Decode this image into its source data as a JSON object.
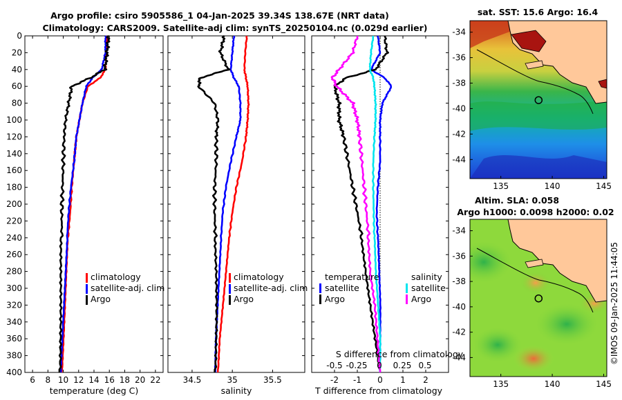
{
  "header": {
    "title_line1": "Argo profile: csiro 5905586_1 04-Jan-2025 39.34S 138.67E (NRT data)",
    "title_line2": "Climatology: CARS2009. Satellite-adj clim: synTS_20250104.nc (0.029d earlier)"
  },
  "colors": {
    "climatology": "#ff0000",
    "satellite": "#0000ff",
    "argo": "#000000",
    "sal_satellite": "#00e5ee",
    "sal_argo": "#ff00ff"
  },
  "chart_data": [
    {
      "id": "temperature",
      "type": "line",
      "xlabel": "temperature (deg C)",
      "ylabel": "",
      "xlim": [
        5,
        23
      ],
      "ylim": [
        0,
        400
      ],
      "y_reversed": true,
      "xticks": [
        6,
        8,
        10,
        12,
        14,
        16,
        18,
        20,
        22
      ],
      "yticks": [
        0,
        20,
        40,
        60,
        80,
        100,
        120,
        140,
        160,
        180,
        200,
        220,
        240,
        260,
        280,
        300,
        320,
        340,
        360,
        380,
        400
      ],
      "legend": [
        "climatology",
        "satellite-adj. clim",
        "Argo"
      ],
      "legend_position": "lower-right",
      "series": [
        {
          "name": "climatology",
          "color": "#ff0000",
          "x": [
            15.7,
            15.6,
            15.5,
            14.8,
            13.2,
            12.5,
            12.1,
            11.7,
            11.4,
            11.1,
            10.9,
            10.6,
            10.4,
            10.2,
            10.0,
            9.8
          ],
          "y": [
            0,
            20,
            40,
            50,
            60,
            80,
            100,
            120,
            150,
            180,
            210,
            240,
            280,
            320,
            360,
            400
          ]
        },
        {
          "name": "satellite-adj. clim",
          "color": "#0000ff",
          "x": [
            15.5,
            15.5,
            15.0,
            13.8,
            13.0,
            12.5,
            12.1,
            11.7,
            11.4,
            11.0,
            10.7,
            10.5,
            10.3,
            10.1,
            9.9,
            9.7
          ],
          "y": [
            0,
            20,
            40,
            50,
            60,
            80,
            100,
            120,
            150,
            180,
            210,
            240,
            280,
            320,
            360,
            400
          ]
        },
        {
          "name": "Argo",
          "color": "#000000",
          "x": [
            15.9,
            15.7,
            15.4,
            13.5,
            11.1,
            10.7,
            10.3,
            10.1,
            10.0,
            9.9,
            9.8,
            9.8,
            9.75,
            9.7,
            9.6,
            9.5
          ],
          "y": [
            0,
            20,
            40,
            50,
            60,
            80,
            100,
            120,
            150,
            180,
            210,
            240,
            280,
            320,
            360,
            400
          ]
        }
      ]
    },
    {
      "id": "salinity",
      "type": "line",
      "xlabel": "salinity",
      "ylabel": "",
      "xlim": [
        34.2,
        35.9
      ],
      "ylim": [
        0,
        400
      ],
      "y_reversed": true,
      "xticks": [
        34.5,
        35,
        35.5
      ],
      "legend": [
        "climatology",
        "satellite-adj. clim",
        "Argo"
      ],
      "legend_position": "lower-right",
      "series": [
        {
          "name": "climatology",
          "color": "#ff0000",
          "x": [
            35.18,
            35.16,
            35.15,
            35.17,
            35.19,
            35.2,
            35.19,
            35.17,
            35.12,
            35.05,
            35.0,
            34.96,
            34.92,
            34.88,
            34.84,
            34.82
          ],
          "y": [
            0,
            20,
            40,
            50,
            60,
            80,
            100,
            120,
            150,
            180,
            210,
            240,
            280,
            320,
            360,
            400
          ]
        },
        {
          "name": "satellite-adj. clim",
          "color": "#0000ff",
          "x": [
            35.02,
            35.0,
            34.98,
            35.02,
            35.08,
            35.1,
            35.1,
            35.05,
            34.98,
            34.92,
            34.88,
            34.86,
            34.84,
            34.82,
            34.8,
            34.79
          ],
          "y": [
            0,
            20,
            40,
            50,
            60,
            80,
            100,
            120,
            150,
            180,
            210,
            240,
            280,
            320,
            360,
            400
          ]
        },
        {
          "name": "Argo",
          "color": "#000000",
          "x": [
            34.9,
            34.85,
            34.95,
            34.6,
            34.58,
            34.78,
            34.82,
            34.8,
            34.8,
            34.78,
            34.78,
            34.79,
            34.8,
            34.8,
            34.79,
            34.78
          ],
          "y": [
            0,
            20,
            40,
            50,
            60,
            80,
            100,
            120,
            150,
            180,
            210,
            240,
            280,
            320,
            360,
            400
          ]
        }
      ]
    },
    {
      "id": "difference",
      "type": "line",
      "xlabel": "T difference from climatology",
      "x2label": "S difference from climatology",
      "xlim": [
        -3,
        3
      ],
      "ylim": [
        0,
        400
      ],
      "y_reversed": true,
      "xticks": [
        -2,
        -1,
        0,
        1,
        2
      ],
      "x2ticks": [
        "-0.5",
        "-0.25",
        "0",
        "0.25",
        "0.5"
      ],
      "legend_groups": [
        {
          "title": "temperature",
          "items": [
            "satellite",
            "Argo"
          ]
        },
        {
          "title": "salinity",
          "items": [
            "satellite",
            "Argo"
          ]
        }
      ],
      "series": [
        {
          "name": "T satellite",
          "color": "#0000ff",
          "x": [
            -0.1,
            0.0,
            -0.4,
            0.2,
            0.5,
            0.1,
            0.0,
            0.0,
            0.0,
            -0.1,
            -0.15,
            -0.1,
            -0.05,
            0.0,
            0.0,
            0.0
          ],
          "y": [
            0,
            20,
            40,
            50,
            60,
            80,
            100,
            120,
            150,
            180,
            210,
            240,
            280,
            320,
            360,
            400
          ]
        },
        {
          "name": "T Argo",
          "color": "#000000",
          "x": [
            0.2,
            0.3,
            -0.2,
            -1.5,
            -2.0,
            -1.8,
            -1.8,
            -1.6,
            -1.4,
            -1.2,
            -1.0,
            -0.8,
            -0.6,
            -0.4,
            -0.2,
            0.0
          ],
          "y": [
            0,
            20,
            40,
            50,
            60,
            80,
            100,
            120,
            150,
            180,
            210,
            240,
            280,
            320,
            360,
            400
          ]
        },
        {
          "name": "S satellite",
          "color": "#00e5ee",
          "x": [
            -0.3,
            -0.4,
            -0.45,
            -0.3,
            -0.25,
            -0.2,
            -0.2,
            -0.25,
            -0.3,
            -0.3,
            -0.28,
            -0.25,
            -0.2,
            -0.1,
            0.0,
            0.0
          ],
          "y": [
            0,
            20,
            40,
            50,
            60,
            80,
            100,
            120,
            150,
            180,
            210,
            240,
            280,
            320,
            360,
            400
          ]
        },
        {
          "name": "S Argo",
          "color": "#ff00ff",
          "x": [
            -1.0,
            -1.2,
            -1.8,
            -2.1,
            -1.9,
            -1.2,
            -1.0,
            -0.9,
            -0.8,
            -0.7,
            -0.6,
            -0.5,
            -0.4,
            -0.2,
            -0.1,
            0.0
          ],
          "y": [
            0,
            20,
            40,
            50,
            60,
            80,
            100,
            120,
            150,
            180,
            210,
            240,
            280,
            320,
            360,
            400
          ]
        }
      ]
    },
    {
      "id": "sst_map",
      "type": "heatmap",
      "title": "sat. SST: 15.6 Argo: 16.4",
      "xticks": [
        135,
        140,
        145
      ],
      "yticks": [
        -34,
        -36,
        -38,
        -40,
        -42,
        -44
      ],
      "argo_position": {
        "lon": 138.67,
        "lat": -39.34
      }
    },
    {
      "id": "sla_map",
      "type": "heatmap",
      "title_line1": "Altim. SLA: 0.058",
      "title_line2": "Argo h1000: 0.0098 h2000: 0.02",
      "xticks": [
        135,
        140,
        145
      ],
      "yticks": [
        -34,
        -36,
        -38,
        -40,
        -42,
        -44
      ],
      "argo_position": {
        "lon": 138.67,
        "lat": -39.34
      }
    }
  ],
  "footer": {
    "credit": "©IMOS 09-Jan-2025 11:44:05"
  }
}
